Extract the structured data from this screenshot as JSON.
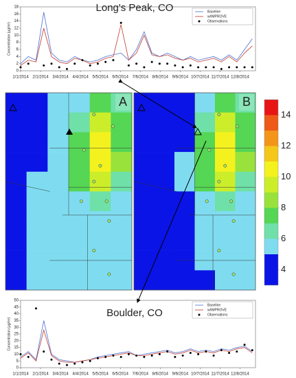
{
  "chart_data": [
    {
      "type": "line",
      "title": "Long's Peak, CO",
      "ylabel": "Concentration (µg/m³)",
      "x": [
        0,
        12,
        24,
        36,
        48,
        60,
        72,
        84,
        96,
        108,
        120,
        132,
        144,
        156,
        168,
        180,
        192,
        204,
        216,
        228,
        240,
        252,
        264,
        276,
        288,
        300,
        312,
        324,
        336,
        348,
        360
      ],
      "series": [
        {
          "name": "Baseline",
          "color": "#4a6fd0",
          "values": [
            2,
            4,
            3,
            16.5,
            5,
            3,
            2.5,
            4,
            3,
            2.5,
            3,
            4,
            4.5,
            5,
            3,
            6,
            11,
            5,
            4,
            5,
            4,
            3,
            4,
            3,
            3.5,
            4,
            3,
            4.5,
            3,
            6,
            9
          ]
        },
        {
          "name": "w/IMPROVE",
          "color": "#c0392b",
          "values": [
            1.5,
            3,
            2.5,
            12,
            4,
            2.5,
            2,
            3.5,
            3,
            2,
            2.5,
            3.5,
            4,
            13,
            3,
            5,
            10,
            4.5,
            4,
            4.5,
            3.5,
            3,
            3.5,
            2.5,
            3,
            3.5,
            2.5,
            4,
            2.5,
            5,
            7
          ]
        },
        {
          "name": "Observations",
          "color": "#000000",
          "marker": "dot",
          "values": [
            1,
            2,
            null,
            1.5,
            2,
            1,
            0.5,
            2,
            3,
            1.5,
            2,
            2.5,
            3,
            13.5,
            1.5,
            2,
            1,
            2.5,
            2,
            2,
            1.5,
            1,
            1.5,
            1,
            1,
            1,
            0.5,
            1,
            1,
            1,
            1
          ]
        }
      ],
      "xlim": [
        0,
        365
      ],
      "xticks": [
        {
          "value": 0,
          "label": "1/1/2014"
        },
        {
          "value": 31,
          "label": "2/1/2014"
        },
        {
          "value": 62,
          "label": "3/4/2014"
        },
        {
          "value": 93,
          "label": "4/4/2014"
        },
        {
          "value": 124,
          "label": "5/5/2014"
        },
        {
          "value": 155,
          "label": "6/5/2014"
        },
        {
          "value": 186,
          "label": "7/6/2014"
        },
        {
          "value": 217,
          "label": "8/6/2014"
        },
        {
          "value": 248,
          "label": "9/6/2014"
        },
        {
          "value": 279,
          "label": "10/7/2014"
        },
        {
          "value": 310,
          "label": "11/7/2014"
        },
        {
          "value": 341,
          "label": "12/8/2014"
        }
      ],
      "ylim": [
        0,
        18
      ],
      "yticks": [
        0,
        2,
        4,
        6,
        8,
        10,
        12,
        14,
        16,
        18
      ],
      "legend": "upper right"
    },
    {
      "type": "heatmap",
      "title": "A",
      "z": [
        [
          4,
          4,
          5.5,
          5.5,
          7.5,
          6
        ],
        [
          4,
          4,
          5.5,
          6,
          9,
          7
        ],
        [
          4,
          4,
          5.5,
          7,
          10,
          7.5
        ],
        [
          4,
          4,
          5.5,
          7.5,
          10.5,
          8
        ],
        [
          4,
          5.5,
          5.5,
          7,
          9,
          6
        ],
        [
          4,
          5.5,
          5.5,
          5.5,
          6,
          5.5
        ],
        [
          4,
          5.5,
          5.5,
          5.5,
          5.5,
          5.5
        ],
        [
          4,
          5.5,
          5.5,
          5.5,
          5.5,
          5.5
        ],
        [
          4,
          5.5,
          5.5,
          5.5,
          5.5,
          5.5
        ],
        [
          4,
          5.5,
          5.5,
          5.5,
          5.5,
          5.5
        ]
      ]
    },
    {
      "type": "heatmap",
      "title": "B",
      "z": [
        [
          4,
          4,
          4,
          5.5,
          7,
          6
        ],
        [
          4,
          4,
          4,
          6,
          9,
          7
        ],
        [
          4,
          4,
          4,
          7,
          10,
          7.5
        ],
        [
          4,
          4,
          5.5,
          7.5,
          10.5,
          8
        ],
        [
          4,
          4,
          5.5,
          7,
          9,
          6
        ],
        [
          4,
          4,
          4,
          5.5,
          6,
          5.5
        ],
        [
          4,
          4,
          4,
          5.5,
          5.5,
          5.5
        ],
        [
          4,
          4,
          4,
          5.5,
          5.5,
          5.5
        ],
        [
          4,
          4,
          4,
          5.5,
          5.5,
          5.5
        ],
        [
          4,
          4,
          4,
          4,
          5.5,
          5.5
        ]
      ]
    },
    {
      "type": "colorbar",
      "bins": [
        3,
        5,
        6,
        7,
        8,
        9,
        10,
        11,
        12,
        13,
        14,
        15
      ],
      "colors": [
        "#0a14e6",
        "#7fdcf0",
        "#6fe0a8",
        "#55d655",
        "#99e23c",
        "#ccee2a",
        "#f4f21e",
        "#f5c71a",
        "#f3951a",
        "#ee5a18",
        "#e81515"
      ],
      "ticks": [
        4,
        6,
        8,
        10,
        12,
        14
      ]
    },
    {
      "type": "line",
      "title": "Boulder, CO",
      "ylabel": "Concentration (µg/m³)",
      "x": [
        0,
        12,
        24,
        36,
        48,
        60,
        72,
        84,
        96,
        108,
        120,
        132,
        144,
        156,
        168,
        180,
        192,
        204,
        216,
        228,
        240,
        252,
        264,
        276,
        288,
        300,
        312,
        324,
        336,
        348,
        360
      ],
      "series": [
        {
          "name": "Baseline",
          "color": "#4a6fd0",
          "values": [
            8,
            12,
            6,
            35,
            10,
            6,
            5,
            4,
            5,
            6,
            8,
            9,
            10,
            11,
            12,
            9,
            10,
            11,
            12,
            13,
            11,
            12,
            14,
            12,
            13,
            12,
            14,
            13,
            15,
            16,
            12
          ]
        },
        {
          "name": "w/IMPROVE",
          "color": "#c0392b",
          "values": [
            7,
            11,
            5,
            28,
            9,
            5,
            4,
            4,
            5,
            6,
            7,
            8,
            9,
            10,
            11,
            9,
            9,
            10,
            11,
            12,
            10,
            11,
            13,
            11,
            12,
            11,
            13,
            12,
            14,
            15,
            11
          ]
        },
        {
          "name": "Observations",
          "color": "#000000",
          "marker": "dot",
          "values": [
            10,
            8,
            44,
            12,
            6,
            3,
            2,
            3,
            4,
            5,
            7,
            8,
            9,
            8,
            10,
            9,
            8,
            9,
            10,
            12,
            8,
            9,
            11,
            10,
            12,
            9,
            13,
            11,
            12,
            17,
            13
          ]
        }
      ],
      "xlim": [
        0,
        365
      ],
      "xticks": [
        {
          "value": 0,
          "label": "1/1/2014"
        },
        {
          "value": 31,
          "label": "2/1/2014"
        },
        {
          "value": 62,
          "label": "3/4/2014"
        },
        {
          "value": 93,
          "label": "4/4/2014"
        },
        {
          "value": 124,
          "label": "5/5/2014"
        },
        {
          "value": 155,
          "label": "6/5/2014"
        },
        {
          "value": 186,
          "label": "7/6/2014"
        },
        {
          "value": 217,
          "label": "8/6/2014"
        },
        {
          "value": 248,
          "label": "9/6/2014"
        },
        {
          "value": 279,
          "label": "10/7/2014"
        },
        {
          "value": 310,
          "label": "11/7/2014"
        },
        {
          "value": 341,
          "label": "12/8/2014"
        }
      ],
      "ylim": [
        0,
        50
      ],
      "yticks": [
        0,
        5,
        10,
        15,
        20,
        25,
        30,
        35,
        40,
        45,
        50
      ],
      "legend": "upper right"
    }
  ]
}
